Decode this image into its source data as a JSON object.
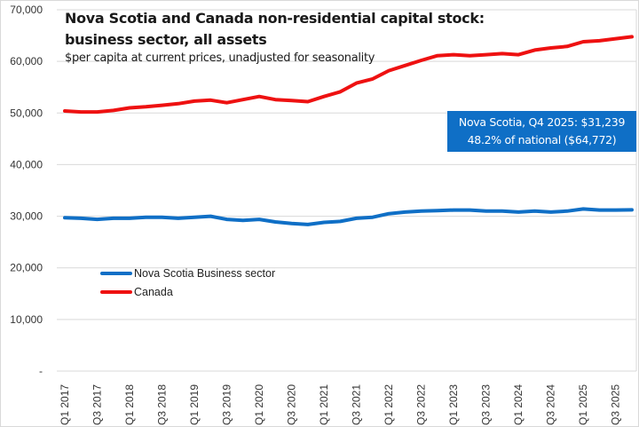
{
  "chart_data": {
    "type": "line",
    "title_line1": "Nova Scotia and Canada non-residential capital stock:",
    "title_line2": "business sector, all assets",
    "subtitle": "$per capita at current prices, unadjusted for seasonality",
    "xlabel": "",
    "ylabel": "",
    "ylim": [
      0,
      70000
    ],
    "yticks": [
      0,
      10000,
      20000,
      30000,
      40000,
      50000,
      60000,
      70000
    ],
    "ytick_labels": [
      "-",
      "10,000",
      "20,000",
      "30,000",
      "40,000",
      "50,000",
      "60,000",
      "70,000"
    ],
    "grid": true,
    "legend_position": "lower-left",
    "x": [
      "Q1 2017",
      "Q2 2017",
      "Q3 2017",
      "Q4 2017",
      "Q1 2018",
      "Q2 2018",
      "Q3 2018",
      "Q4 2018",
      "Q1 2019",
      "Q2 2019",
      "Q3 2019",
      "Q4 2019",
      "Q1 2020",
      "Q2 2020",
      "Q3 2020",
      "Q4 2020",
      "Q1 2021",
      "Q2 2021",
      "Q3 2021",
      "Q4 2021",
      "Q1 2022",
      "Q2 2022",
      "Q3 2022",
      "Q4 2022",
      "Q1 2023",
      "Q2 2023",
      "Q3 2023",
      "Q4 2023",
      "Q1 2024",
      "Q2 2024",
      "Q3 2024",
      "Q4 2024",
      "Q1 2025",
      "Q2 2025",
      "Q3 2025",
      "Q4 2025"
    ],
    "xtick_labels": [
      "Q1 2017",
      "Q3 2017",
      "Q1 2018",
      "Q3 2018",
      "Q1 2019",
      "Q3 2019",
      "Q1 2020",
      "Q3 2020",
      "Q1 2021",
      "Q3 2021",
      "Q1 2022",
      "Q3 2022",
      "Q1 2023",
      "Q3 2023",
      "Q1 2024",
      "Q3 2024",
      "Q1 2025",
      "Q3 2025"
    ],
    "series": [
      {
        "name": "Nova Scotia Business sector",
        "color": "#0f6fc6",
        "values": [
          29700,
          29600,
          29400,
          29600,
          29600,
          29800,
          29800,
          29600,
          29800,
          30000,
          29400,
          29200,
          29400,
          28900,
          28600,
          28400,
          28800,
          29000,
          29600,
          29800,
          30500,
          30800,
          31000,
          31100,
          31200,
          31200,
          31000,
          31000,
          30800,
          31000,
          30800,
          31000,
          31400,
          31200,
          31200,
          31239
        ]
      },
      {
        "name": "Canada",
        "color": "#ee1111",
        "values": [
          50400,
          50200,
          50200,
          50500,
          51000,
          51200,
          51500,
          51800,
          52300,
          52500,
          52000,
          52600,
          53200,
          52600,
          52400,
          52200,
          53200,
          54100,
          55800,
          56600,
          58200,
          59200,
          60200,
          61100,
          61300,
          61100,
          61300,
          61500,
          61300,
          62200,
          62600,
          62900,
          63800,
          64000,
          64400,
          64772
        ]
      }
    ],
    "annotation": {
      "line1": "Nova Scotia, Q4 2025: $31,239",
      "line2": "48.2% of national ($64,772)",
      "background": "#0f6fc6"
    }
  }
}
